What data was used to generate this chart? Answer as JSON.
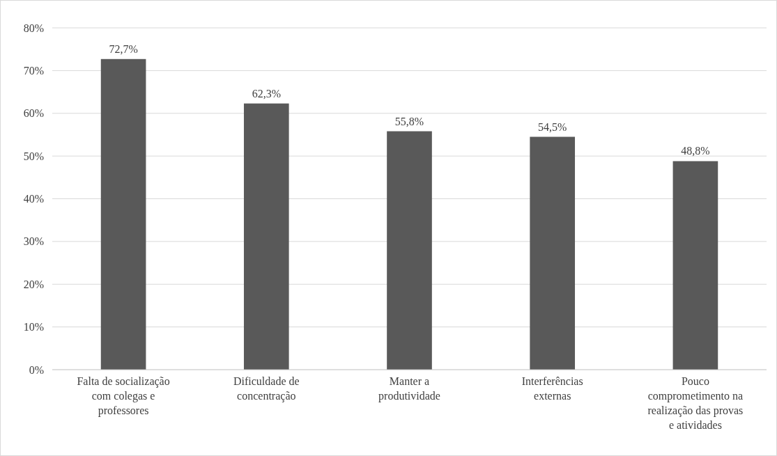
{
  "chart_data": {
    "type": "bar",
    "categories": [
      "Falta de socialização com colegas e professores",
      "Dificuldade de concentração",
      "Manter a produtividade",
      "Interferências externas",
      "Pouco comprometimento na realização das provas e atividades"
    ],
    "values": [
      72.7,
      62.3,
      55.8,
      54.5,
      48.8
    ],
    "value_labels": [
      "72,7%",
      "62,3%",
      "55,8%",
      "54,5%",
      "48,8%"
    ],
    "color": "#595959",
    "ylim": [
      0,
      80
    ],
    "yticks": [
      {
        "value": 0,
        "label": "0%"
      },
      {
        "value": 10,
        "label": "10%"
      },
      {
        "value": 20,
        "label": "20%"
      },
      {
        "value": 30,
        "label": "30%"
      },
      {
        "value": 40,
        "label": "40%"
      },
      {
        "value": 50,
        "label": "50%"
      },
      {
        "value": 60,
        "label": "60%"
      },
      {
        "value": 70,
        "label": "70%"
      },
      {
        "value": 80,
        "label": "80%"
      }
    ],
    "grid": "y"
  }
}
